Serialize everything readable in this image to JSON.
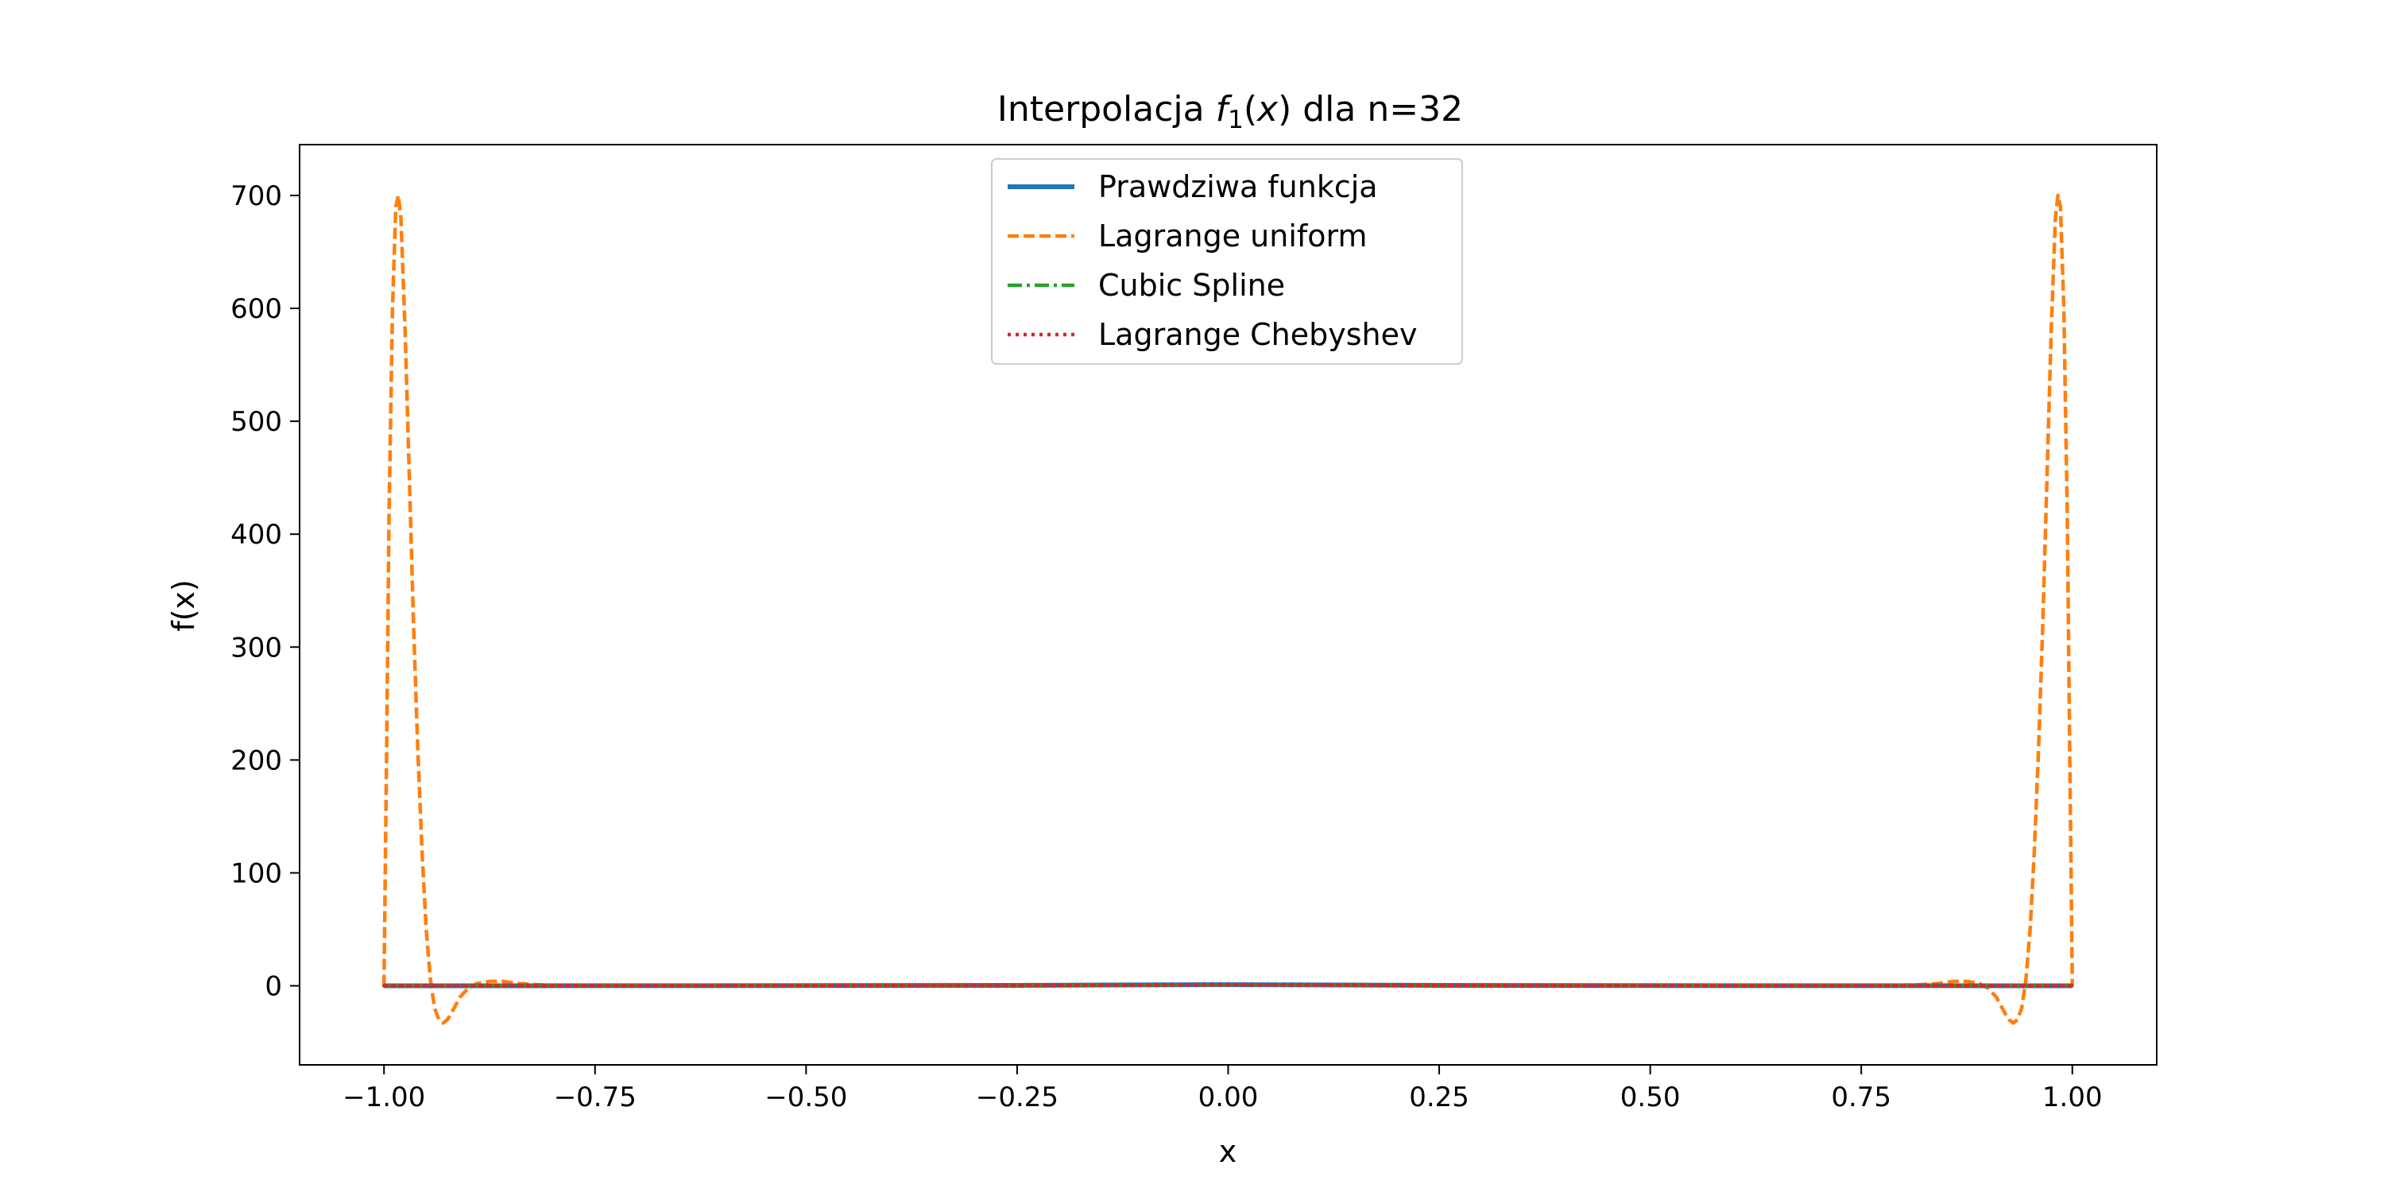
{
  "chart_data": {
    "type": "line",
    "title": {
      "prefix": "Interpolacja ",
      "func": "f",
      "subscript": "1",
      "open": "(",
      "var": "x",
      "suffix": ") dla n=32"
    },
    "xlabel": "x",
    "ylabel": "f(x)",
    "xlim": [
      -1.1,
      1.1
    ],
    "ylim": [
      -70,
      745
    ],
    "xticks": [
      -1.0,
      -0.75,
      -0.5,
      -0.25,
      0.0,
      0.25,
      0.5,
      0.75,
      1.0
    ],
    "xtick_labels": [
      "−1.00",
      "−0.75",
      "−0.50",
      "−0.25",
      "0.00",
      "0.25",
      "0.50",
      "0.75",
      "1.00"
    ],
    "yticks": [
      0,
      100,
      200,
      300,
      400,
      500,
      600,
      700
    ],
    "ytick_labels": [
      "0",
      "100",
      "200",
      "300",
      "400",
      "500",
      "600",
      "700"
    ],
    "legend_position": "upper center",
    "series": [
      {
        "name": "Prawdziwa funkcja",
        "color": "#1f77b4",
        "style": "solid",
        "x": [
          -1.0,
          -0.75,
          -0.5,
          -0.25,
          -0.1,
          0.0,
          0.1,
          0.25,
          0.5,
          0.75,
          1.0
        ],
        "y": [
          0.04,
          0.07,
          0.14,
          0.39,
          0.8,
          1.0,
          0.8,
          0.39,
          0.14,
          0.07,
          0.04
        ]
      },
      {
        "name": "Lagrange uniform",
        "color": "#ff7f0e",
        "style": "dashed",
        "x": [
          -1.0,
          -0.997,
          -0.994,
          -0.99,
          -0.986,
          -0.983,
          -0.98,
          -0.975,
          -0.97,
          -0.965,
          -0.96,
          -0.955,
          -0.95,
          -0.945,
          -0.94,
          -0.935,
          -0.93,
          -0.925,
          -0.92,
          -0.915,
          -0.91,
          -0.9,
          -0.89,
          -0.875,
          -0.86,
          -0.85,
          -0.84,
          -0.82,
          -0.8,
          -0.75,
          -0.5,
          0.0,
          0.5,
          0.75,
          0.8,
          0.82,
          0.84,
          0.85,
          0.86,
          0.875,
          0.89,
          0.9,
          0.91,
          0.915,
          0.92,
          0.925,
          0.93,
          0.935,
          0.94,
          0.945,
          0.95,
          0.955,
          0.96,
          0.965,
          0.97,
          0.975,
          0.98,
          0.983,
          0.986,
          0.99,
          0.994,
          0.997,
          1.0
        ],
        "y": [
          0,
          200,
          420,
          600,
          690,
          700,
          680,
          580,
          450,
          320,
          210,
          120,
          50,
          5,
          -20,
          -30,
          -33,
          -30,
          -24,
          -17,
          -10,
          -2,
          2,
          4,
          4,
          3,
          2,
          1,
          0.5,
          0.2,
          0.2,
          1.0,
          0.2,
          0.2,
          0.5,
          1,
          2,
          3,
          4,
          4,
          2,
          -2,
          -10,
          -17,
          -24,
          -30,
          -33,
          -30,
          -20,
          5,
          50,
          120,
          210,
          320,
          450,
          580,
          680,
          700,
          690,
          600,
          420,
          200,
          0
        ]
      },
      {
        "name": "Cubic Spline",
        "color": "#2ca02c",
        "style": "dashdot",
        "x": [
          -1.0,
          -0.75,
          -0.5,
          -0.25,
          -0.1,
          0.0,
          0.1,
          0.25,
          0.5,
          0.75,
          1.0
        ],
        "y": [
          0.04,
          0.07,
          0.14,
          0.39,
          0.8,
          1.0,
          0.8,
          0.39,
          0.14,
          0.07,
          0.04
        ]
      },
      {
        "name": "Lagrange Chebyshev",
        "color": "#d62728",
        "style": "dotted",
        "x": [
          -1.0,
          -0.75,
          -0.5,
          -0.25,
          -0.1,
          0.0,
          0.1,
          0.25,
          0.5,
          0.75,
          1.0
        ],
        "y": [
          0.04,
          0.07,
          0.14,
          0.39,
          0.8,
          1.0,
          0.8,
          0.39,
          0.14,
          0.07,
          0.04
        ]
      }
    ]
  }
}
